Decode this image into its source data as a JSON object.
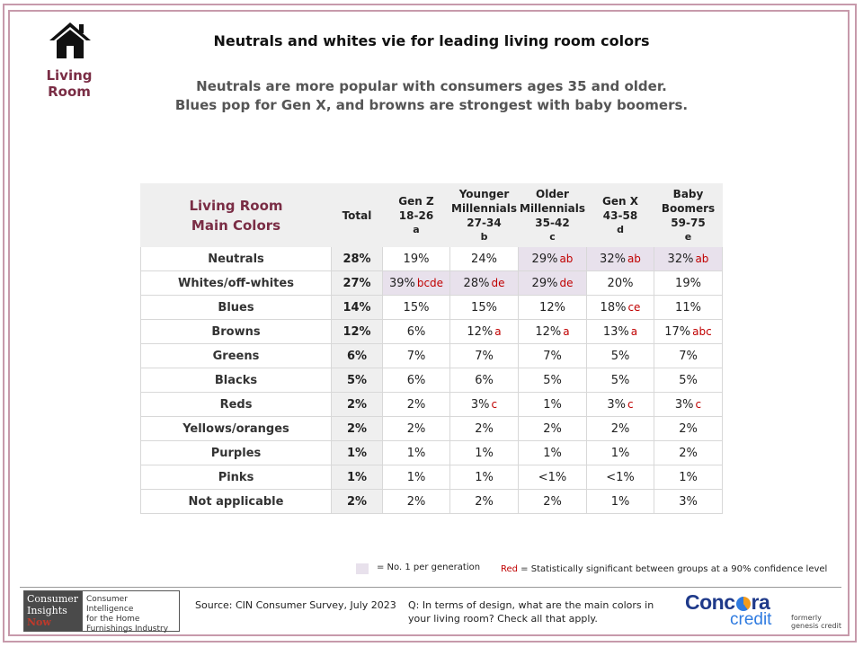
{
  "header": {
    "section_label": "Living Room",
    "title": "Neutrals and whites vie for leading living room colors",
    "subtitle_line1": "Neutrals are more popular with consumers ages 35 and older.",
    "subtitle_line2": "Blues pop for Gen X, and browns are strongest with baby boomers."
  },
  "table": {
    "row_header_line1": "Living Room",
    "row_header_line2": "Main Colors",
    "columns": [
      {
        "line1": "Total",
        "line2": "",
        "line3": "",
        "letter": ""
      },
      {
        "line1": "Gen Z",
        "line2": "18-26",
        "line3": "",
        "letter": "a"
      },
      {
        "line1": "Younger",
        "line2": "Millennials",
        "line3": "27-34",
        "letter": "b"
      },
      {
        "line1": "Older",
        "line2": "Millennials",
        "line3": "35-42",
        "letter": "c"
      },
      {
        "line1": "Gen X",
        "line2": "43-58",
        "line3": "",
        "letter": "d"
      },
      {
        "line1": "Baby",
        "line2": "Boomers",
        "line3": "59-75",
        "letter": "e"
      }
    ],
    "rows": [
      {
        "label": "Neutrals",
        "total": "28%",
        "cells": [
          {
            "v": "19%",
            "sig": "",
            "top": false
          },
          {
            "v": "24%",
            "sig": "",
            "top": false
          },
          {
            "v": "29%",
            "sig": "ab",
            "top": true
          },
          {
            "v": "32%",
            "sig": "ab",
            "top": true
          },
          {
            "v": "32%",
            "sig": "ab",
            "top": true
          }
        ]
      },
      {
        "label": "Whites/off-whites",
        "total": "27%",
        "cells": [
          {
            "v": "39%",
            "sig": "bcde",
            "top": true
          },
          {
            "v": "28%",
            "sig": "de",
            "top": true
          },
          {
            "v": "29%",
            "sig": "de",
            "top": true
          },
          {
            "v": "20%",
            "sig": "",
            "top": false
          },
          {
            "v": "19%",
            "sig": "",
            "top": false
          }
        ]
      },
      {
        "label": "Blues",
        "total": "14%",
        "cells": [
          {
            "v": "15%",
            "sig": "",
            "top": false
          },
          {
            "v": "15%",
            "sig": "",
            "top": false
          },
          {
            "v": "12%",
            "sig": "",
            "top": false
          },
          {
            "v": "18%",
            "sig": "ce",
            "top": false
          },
          {
            "v": "11%",
            "sig": "",
            "top": false
          }
        ]
      },
      {
        "label": "Browns",
        "total": "12%",
        "cells": [
          {
            "v": "6%",
            "sig": "",
            "top": false
          },
          {
            "v": "12%",
            "sig": "a",
            "top": false
          },
          {
            "v": "12%",
            "sig": "a",
            "top": false
          },
          {
            "v": "13%",
            "sig": "a",
            "top": false
          },
          {
            "v": "17%",
            "sig": "abc",
            "top": false
          }
        ]
      },
      {
        "label": "Greens",
        "total": "6%",
        "cells": [
          {
            "v": "7%",
            "sig": "",
            "top": false
          },
          {
            "v": "7%",
            "sig": "",
            "top": false
          },
          {
            "v": "7%",
            "sig": "",
            "top": false
          },
          {
            "v": "5%",
            "sig": "",
            "top": false
          },
          {
            "v": "7%",
            "sig": "",
            "top": false
          }
        ]
      },
      {
        "label": "Blacks",
        "total": "5%",
        "cells": [
          {
            "v": "6%",
            "sig": "",
            "top": false
          },
          {
            "v": "6%",
            "sig": "",
            "top": false
          },
          {
            "v": "5%",
            "sig": "",
            "top": false
          },
          {
            "v": "5%",
            "sig": "",
            "top": false
          },
          {
            "v": "5%",
            "sig": "",
            "top": false
          }
        ]
      },
      {
        "label": "Reds",
        "total": "2%",
        "cells": [
          {
            "v": "2%",
            "sig": "",
            "top": false
          },
          {
            "v": "3%",
            "sig": "c",
            "top": false
          },
          {
            "v": "1%",
            "sig": "",
            "top": false
          },
          {
            "v": "3%",
            "sig": "c",
            "top": false
          },
          {
            "v": "3%",
            "sig": "c",
            "top": false
          }
        ]
      },
      {
        "label": "Yellows/oranges",
        "total": "2%",
        "cells": [
          {
            "v": "2%",
            "sig": "",
            "top": false
          },
          {
            "v": "2%",
            "sig": "",
            "top": false
          },
          {
            "v": "2%",
            "sig": "",
            "top": false
          },
          {
            "v": "2%",
            "sig": "",
            "top": false
          },
          {
            "v": "2%",
            "sig": "",
            "top": false
          }
        ]
      },
      {
        "label": "Purples",
        "total": "1%",
        "cells": [
          {
            "v": "1%",
            "sig": "",
            "top": false
          },
          {
            "v": "1%",
            "sig": "",
            "top": false
          },
          {
            "v": "1%",
            "sig": "",
            "top": false
          },
          {
            "v": "1%",
            "sig": "",
            "top": false
          },
          {
            "v": "2%",
            "sig": "",
            "top": false
          }
        ]
      },
      {
        "label": "Pinks",
        "total": "1%",
        "cells": [
          {
            "v": "1%",
            "sig": "",
            "top": false
          },
          {
            "v": "1%",
            "sig": "",
            "top": false
          },
          {
            "v": "<1%",
            "sig": "",
            "top": false
          },
          {
            "v": "<1%",
            "sig": "",
            "top": false
          },
          {
            "v": "1%",
            "sig": "",
            "top": false
          }
        ]
      },
      {
        "label": "Not applicable",
        "total": "2%",
        "cells": [
          {
            "v": "2%",
            "sig": "",
            "top": false
          },
          {
            "v": "2%",
            "sig": "",
            "top": false
          },
          {
            "v": "2%",
            "sig": "",
            "top": false
          },
          {
            "v": "1%",
            "sig": "",
            "top": false
          },
          {
            "v": "3%",
            "sig": "",
            "top": false
          }
        ]
      }
    ]
  },
  "legend": {
    "top_label": "= No. 1 per generation",
    "red_word": "Red",
    "red_label": " = Statistically significant between groups at a 90% confidence level"
  },
  "footer": {
    "cin_line1": "Consumer",
    "cin_line2": "Insights",
    "cin_line3": "Now",
    "cin_tagline1": "Consumer Intelligence",
    "cin_tagline2": "for the Home",
    "cin_tagline3": "Furnishings Industry",
    "source": "Source: CIN Consumer Survey, July 2023",
    "question": "Q: In terms of design, what are the main colors in your living room? Check all that apply.",
    "concora_pre": "Conc",
    "concora_post": "ra",
    "concora_credit": "credit",
    "formerly_line1": "formerly",
    "formerly_line2": "genesis credit"
  },
  "colors": {
    "accent": "#7a2d45",
    "frame": "#c79aab",
    "significance_red": "#c00000",
    "top_highlight": "#e8e1ec",
    "header_gray": "#efefef",
    "concora_navy": "#1f3a8a",
    "concora_blue": "#2f7be0"
  },
  "icons": {
    "section_icon": "house-icon"
  }
}
